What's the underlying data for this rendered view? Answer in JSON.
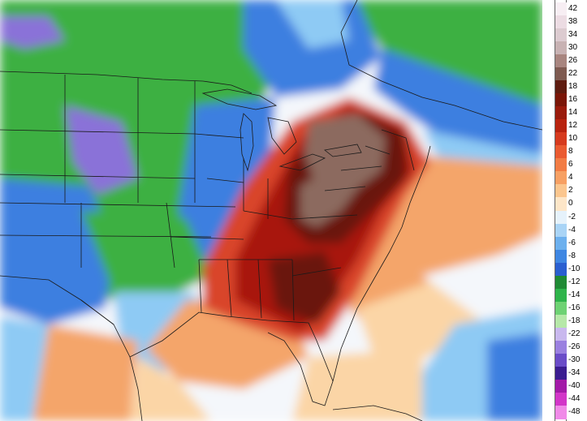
{
  "map": {
    "colors": {
      "water_warm": "#fbd5a6",
      "ocean_orange": "#f4a56b",
      "coast_red": "#d9442a",
      "deep_red": "#a8190f",
      "maroon": "#6a1508",
      "brown": "#8c6a5e",
      "land_green": "#3cb043",
      "bright_green": "#29c85a",
      "blue": "#3e7fe0",
      "light_blue": "#8ecaf4",
      "purple": "#8a72d8",
      "white": "#f4f7fb",
      "borders": "#1a1a1a"
    }
  },
  "legend": {
    "entries": [
      {
        "label": "42",
        "color": "#f7eef3"
      },
      {
        "label": "38",
        "color": "#ecdce3"
      },
      {
        "label": "34",
        "color": "#dccbd0"
      },
      {
        "label": "30",
        "color": "#c8b2b3"
      },
      {
        "label": "26",
        "color": "#a8857f"
      },
      {
        "label": "22",
        "color": "#7e5a50"
      },
      {
        "label": "18",
        "color": "#5e1c10"
      },
      {
        "label": "16",
        "color": "#7a1608"
      },
      {
        "label": "14",
        "color": "#9a1b0c"
      },
      {
        "label": "12",
        "color": "#b8230f"
      },
      {
        "label": "10",
        "color": "#d63a1e"
      },
      {
        "label": "8",
        "color": "#ea5a30"
      },
      {
        "label": "6",
        "color": "#f27c44"
      },
      {
        "label": "4",
        "color": "#f7a063"
      },
      {
        "label": "2",
        "color": "#fbc68e"
      },
      {
        "label": "0",
        "color": "#fde6c8"
      },
      {
        "label": "-2",
        "color": "#e6f2fb"
      },
      {
        "label": "-4",
        "color": "#a9d4f6"
      },
      {
        "label": "-6",
        "color": "#6cb0ee"
      },
      {
        "label": "-8",
        "color": "#3e86e2"
      },
      {
        "label": "-10",
        "color": "#2a5fd0"
      },
      {
        "label": "-12",
        "color": "#1f8a34"
      },
      {
        "label": "-14",
        "color": "#2eb44a"
      },
      {
        "label": "-16",
        "color": "#6ed273"
      },
      {
        "label": "-18",
        "color": "#b6e8a8"
      },
      {
        "label": "-22",
        "color": "#c9b8ee"
      },
      {
        "label": "-26",
        "color": "#9a80e0"
      },
      {
        "label": "-30",
        "color": "#6a4cc8"
      },
      {
        "label": "-34",
        "color": "#3a1c90"
      },
      {
        "label": "-40",
        "color": "#a31aa8"
      },
      {
        "label": "-44",
        "color": "#d236c8"
      },
      {
        "label": "-48",
        "color": "#f08ae8"
      }
    ]
  }
}
